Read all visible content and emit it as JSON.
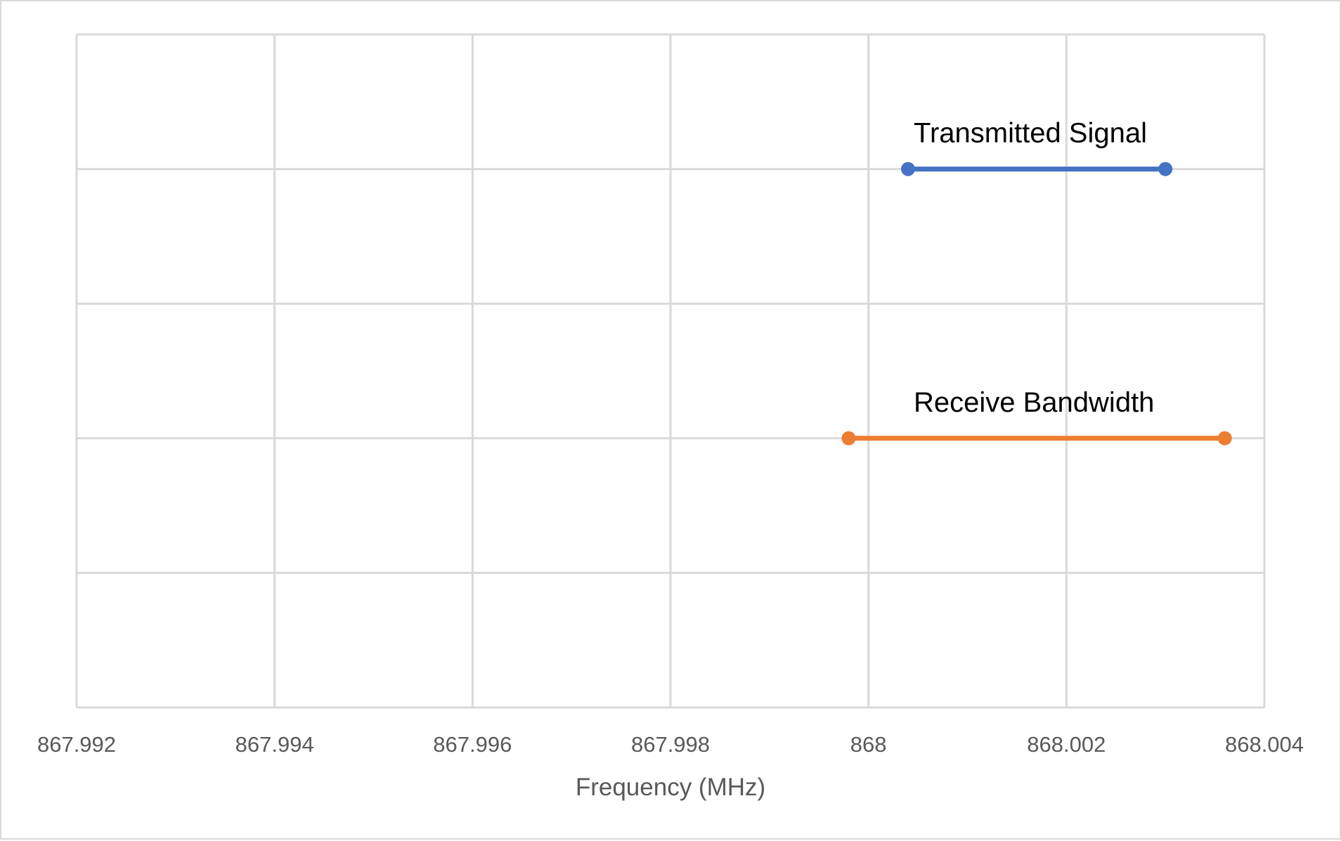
{
  "chart_data": {
    "type": "line",
    "title": "",
    "xlabel": "Frequency (MHz)",
    "ylabel": "",
    "xlim": [
      867.992,
      868.004
    ],
    "ylim": [
      0,
      5
    ],
    "x_ticks": [
      "867.992",
      "867.994",
      "867.996",
      "867.998",
      "868",
      "868.002",
      "868.004"
    ],
    "x_tick_values": [
      867.992,
      867.994,
      867.996,
      867.998,
      868.0,
      868.002,
      868.004
    ],
    "y_gridlines": [
      0,
      1,
      2,
      3,
      4,
      5
    ],
    "grid": true,
    "legend": "none",
    "series": [
      {
        "label": "Transmitted Signal",
        "color": "#4472C4",
        "points": [
          {
            "x": 868.0004,
            "y": 4
          },
          {
            "x": 868.003,
            "y": 4
          }
        ]
      },
      {
        "label": "Receive Bandwidth",
        "color": "#ED7D31",
        "points": [
          {
            "x": 867.9998,
            "y": 2
          },
          {
            "x": 868.0036,
            "y": 2
          }
        ]
      }
    ]
  }
}
